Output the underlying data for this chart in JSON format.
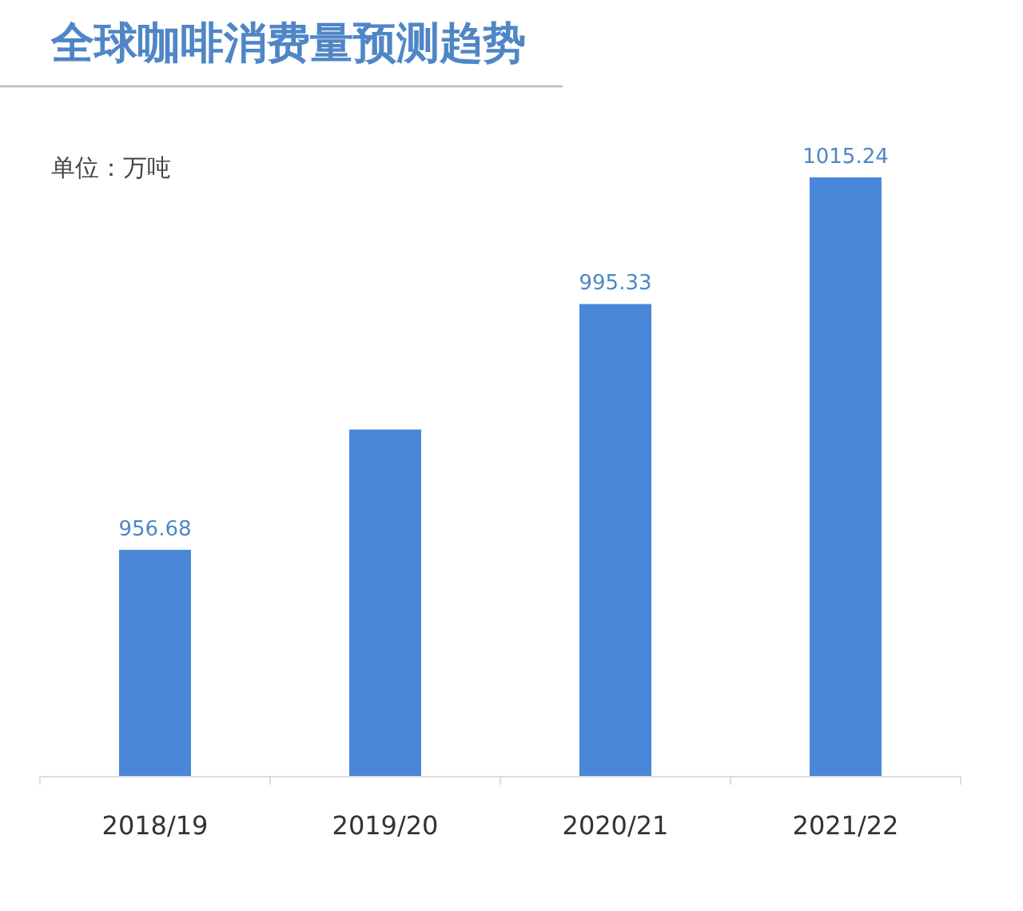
{
  "chart_data": {
    "type": "bar",
    "title": "全球咖啡消费量预测趋势",
    "annotations": [
      "单位：万吨"
    ],
    "categories": [
      "2018/19",
      "2019/20",
      "2020/21",
      "2021/22"
    ],
    "values": [
      956.68,
      975.6,
      995.33,
      1015.24
    ],
    "value_labels": [
      "956.68",
      null,
      "995.33",
      "1015.24"
    ],
    "color": "#4a87d8",
    "ylim": [
      921,
      1015.24
    ],
    "tick_labels": "x"
  }
}
